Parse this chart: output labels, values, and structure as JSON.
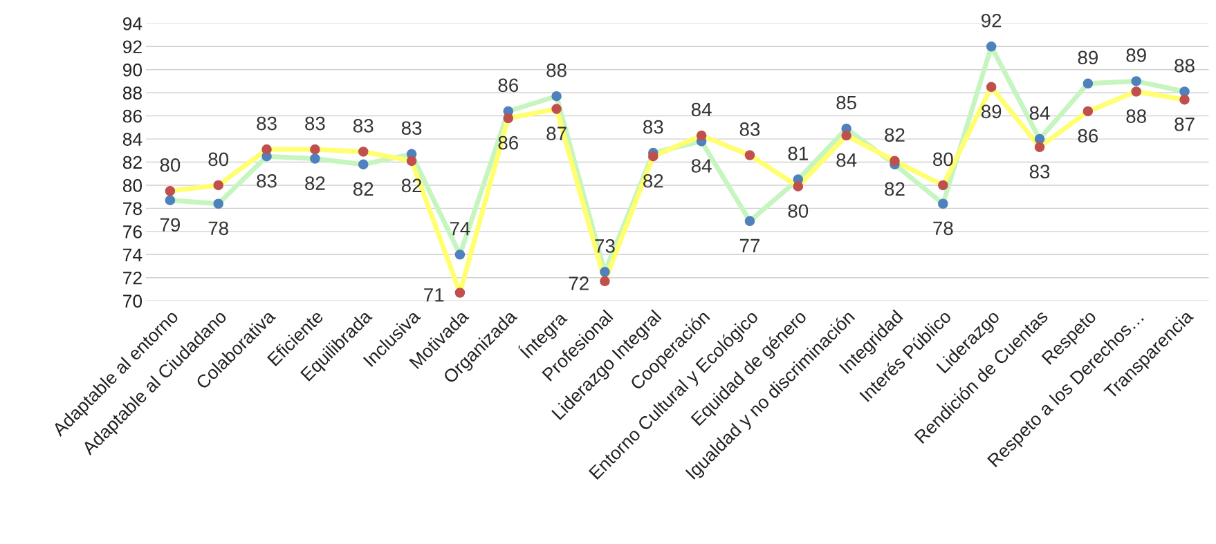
{
  "chart_data": {
    "type": "line",
    "categories": [
      "Adaptable al entorno",
      "Adaptable al Ciudadano",
      "Colaborativa",
      "Eficiente",
      "Equilibrada",
      "Inclusiva",
      "Motivada",
      "Organizada",
      "Íntegra",
      "Profesional",
      "Liderazgo Integral",
      "Cooperación",
      "Entorno Cultural y Ecológico",
      "Equidad de género",
      "Igualdad y no discriminación",
      "Integridad",
      "Interés Público",
      "Liderazgo",
      "Rendición de Cuentas",
      "Respeto",
      "Respeto a los Derechos…",
      "Transparencia"
    ],
    "series": [
      {
        "color": "#c6f5c0",
        "colors": [
          "#4f81bd",
          "#4f81bd",
          "#4f81bd",
          "#4f81bd",
          "#4f81bd",
          "#4f81bd",
          "#4f81bd",
          "#4f81bd",
          "#4f81bd",
          "#4f81bd",
          "#4f81bd",
          "#4f81bd",
          "#4f81bd",
          "#4f81bd",
          "#4f81bd",
          "#4f81bd",
          "#4f81bd",
          "#4f81bd",
          "#4f81bd",
          "#4f81bd",
          "#4f81bd",
          "#4f81bd"
        ],
        "values": [
          78.7,
          78.4,
          82.5,
          82.3,
          81.8,
          82.7,
          74.0,
          86.4,
          87.7,
          72.5,
          82.8,
          83.8,
          76.9,
          80.5,
          84.9,
          81.8,
          78.4,
          92.0,
          84.0,
          88.8,
          89.0,
          88.1
        ],
        "value_labels": [
          "79",
          "78",
          "83",
          "82",
          "82",
          "83",
          "74",
          "86",
          "88",
          "73",
          "83",
          "84",
          "77",
          "81",
          "85",
          "82",
          "78",
          "92",
          "84",
          "89",
          "89",
          "88"
        ]
      },
      {
        "color": "#ffff70",
        "colors": [
          "#c0504d",
          "#c0504d",
          "#c0504d",
          "#c0504d",
          "#c0504d",
          "#c0504d",
          "#c0504d",
          "#c0504d",
          "#c0504d",
          "#c0504d",
          "#c0504d",
          "#c0504d",
          "#c0504d",
          "#c0504d",
          "#c0504d",
          "#c0504d",
          "#c0504d",
          "#c0504d",
          "#c0504d",
          "#c0504d",
          "#c0504d",
          "#c0504d"
        ],
        "values": [
          79.5,
          80.0,
          83.1,
          83.1,
          82.9,
          82.1,
          70.7,
          85.8,
          86.6,
          71.7,
          82.5,
          84.3,
          82.6,
          79.9,
          84.3,
          82.1,
          80.0,
          88.5,
          83.3,
          86.4,
          88.1,
          87.4
        ],
        "value_labels": [
          "80",
          "80",
          "83",
          "83",
          "83",
          "82",
          "71",
          "86",
          "87",
          "72",
          "82",
          "84",
          "83",
          "80",
          "84",
          "82",
          "80",
          "89",
          "83",
          "86",
          "88",
          "87"
        ]
      }
    ],
    "ylim": [
      70,
      94
    ],
    "yticks": [
      70,
      72,
      74,
      76,
      78,
      80,
      82,
      84,
      86,
      88,
      90,
      92,
      94
    ],
    "grid": "y",
    "marker": "circle",
    "line_style": "solid"
  }
}
